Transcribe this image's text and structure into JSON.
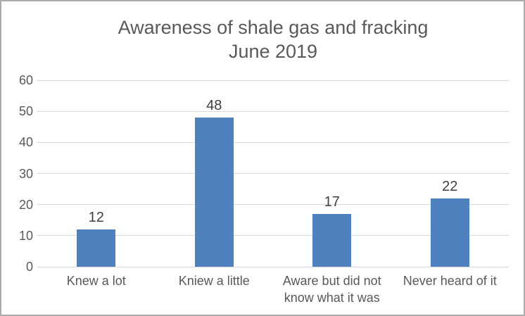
{
  "chart_data": {
    "type": "bar",
    "title": "Awareness of shale gas and fracking",
    "subtitle": "June 2019",
    "categories": [
      "Knew a lot",
      "Kniew a little",
      "Aware but did not know what it was",
      "Never heard of it"
    ],
    "values": [
      12,
      48,
      17,
      22
    ],
    "data_labels": [
      12,
      48,
      17,
      22
    ],
    "xlabel": "",
    "ylabel": "",
    "ylim": [
      0,
      60
    ],
    "yticks": [
      0,
      10,
      20,
      30,
      40,
      50,
      60
    ],
    "grid": true,
    "legend": false,
    "colors": {
      "bar_fill": "#4e81bd",
      "gridline": "#d9d9d9",
      "title_text": "#595959",
      "tick_text": "#595959",
      "data_label_text": "#404040",
      "frame_border": "#ababab"
    }
  }
}
